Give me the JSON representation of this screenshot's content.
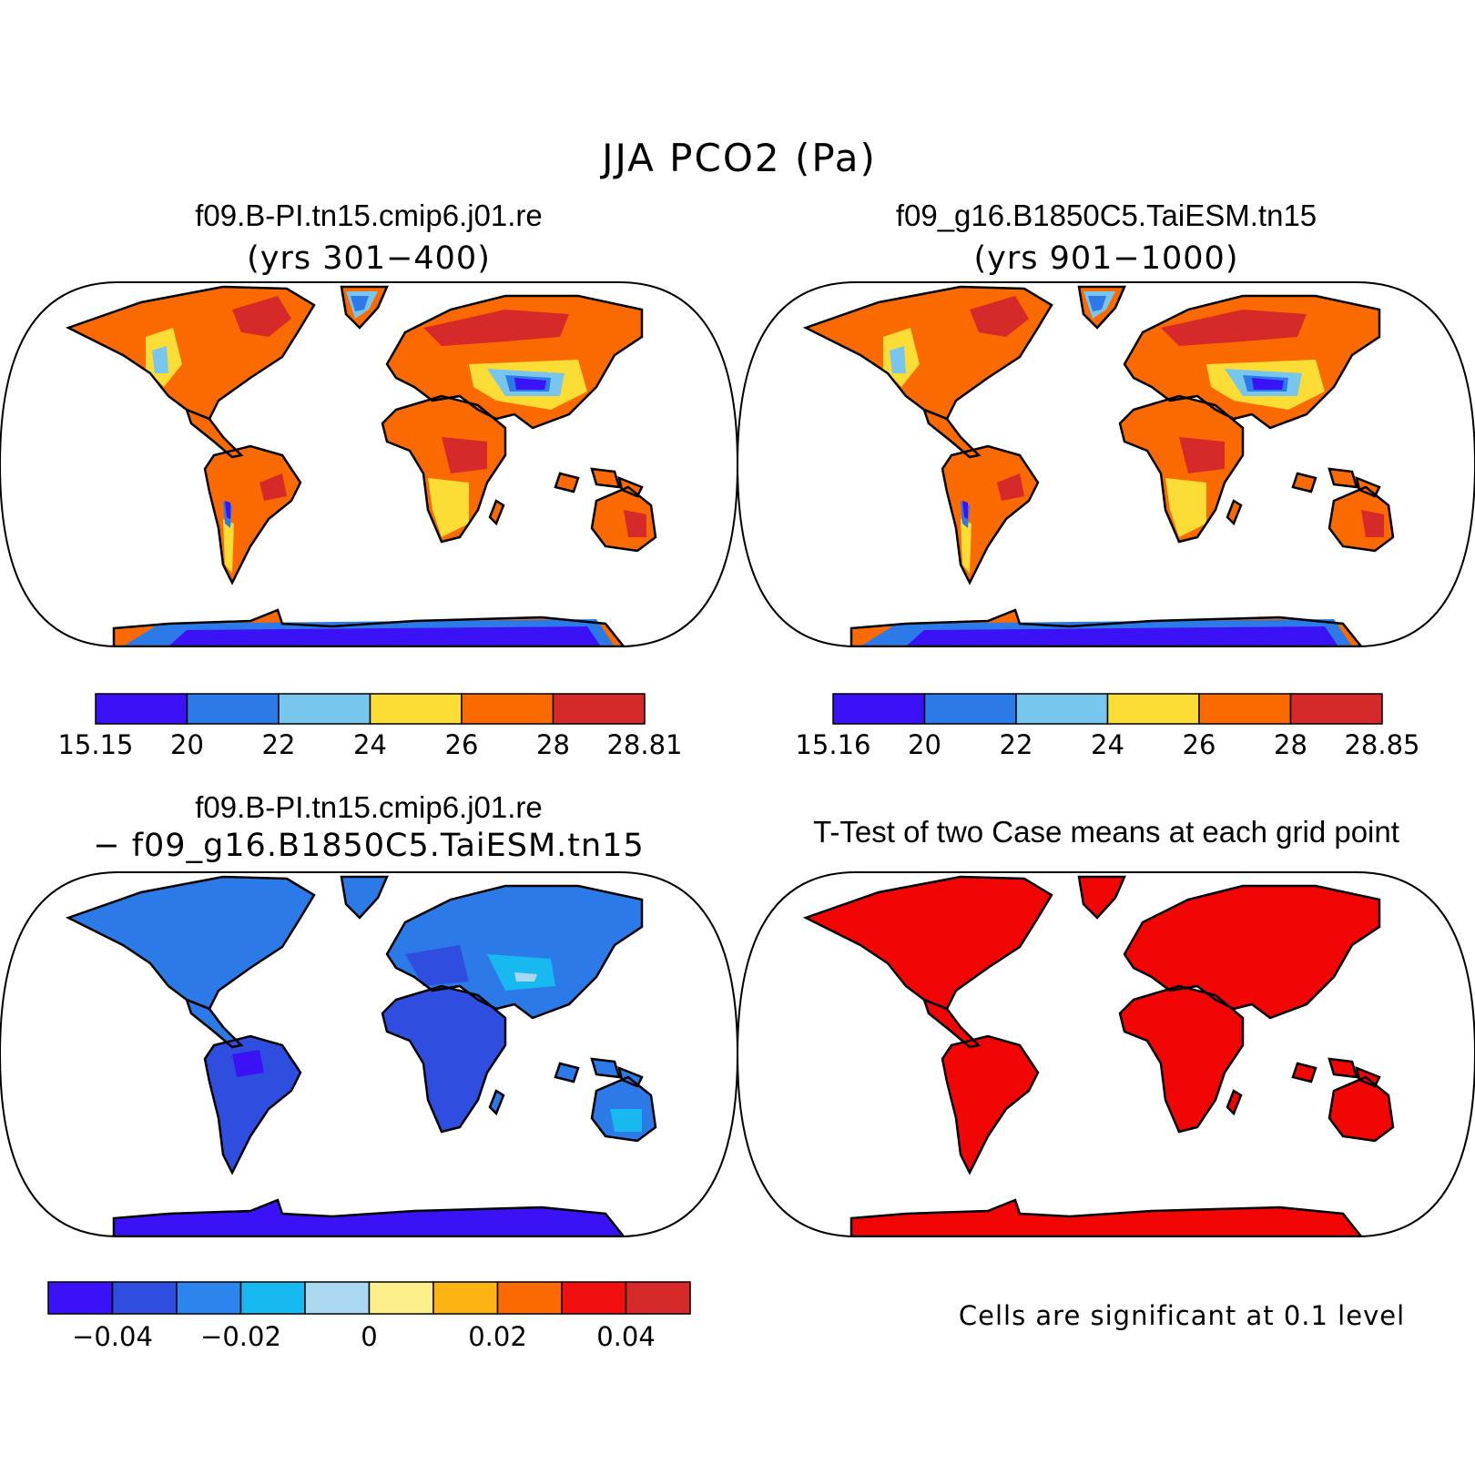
{
  "main_title": "JJA PCO2 (Pa)",
  "panels": [
    {
      "id": "case1",
      "title": "f09.B-PI.tn15.cmip6.j01.re",
      "subtitle": "(yrs 301−400)",
      "colorbar": {
        "colors": [
          "#3a12f5",
          "#2b7ae8",
          "#78c6ee",
          "#fbdd35",
          "#fb6a00",
          "#d62a2a"
        ],
        "labels": [
          "15.15",
          "20",
          "22",
          "24",
          "26",
          "28",
          "28.81"
        ]
      }
    },
    {
      "id": "case2",
      "title": "f09_g16.B1850C5.TaiESM.tn15",
      "subtitle": "(yrs 901−1000)",
      "colorbar": {
        "colors": [
          "#3a12f5",
          "#2b7ae8",
          "#78c6ee",
          "#fbdd35",
          "#fb6a00",
          "#d62a2a"
        ],
        "labels": [
          "15.16",
          "20",
          "22",
          "24",
          "26",
          "28",
          "28.85"
        ]
      }
    },
    {
      "id": "diff",
      "title": "f09.B-PI.tn15.cmip6.j01.re",
      "subtitle": "− f09_g16.B1850C5.TaiESM.tn15",
      "colorbar": {
        "colors": [
          "#3a12f5",
          "#2f4ee0",
          "#2b85ec",
          "#18b8f0",
          "#a8d7ef",
          "#fdf08a",
          "#fbb412",
          "#fb6a00",
          "#f20f0f",
          "#d62a2a"
        ],
        "labels": [
          "−0.04",
          "−0.02",
          "0",
          "0.02",
          "0.04"
        ]
      }
    },
    {
      "id": "ttest",
      "title": "T-Test of two Case means at each grid point",
      "note": "Cells are significant at 0.1 level",
      "fill_color": "#f20505"
    }
  ],
  "colors": {
    "ocean": "#ffffff",
    "coast": "#000000"
  }
}
